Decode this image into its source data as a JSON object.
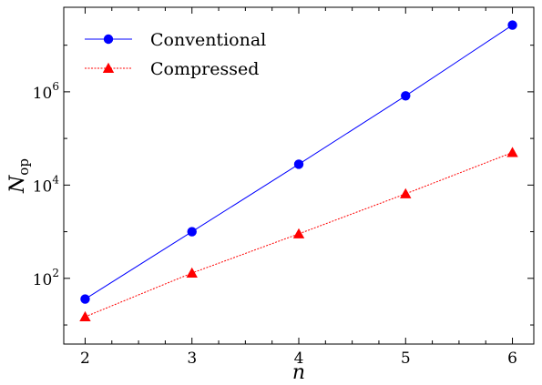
{
  "chart_data": {
    "type": "line",
    "xlabel": "n",
    "ylabel": "N",
    "ylabel_subscript": "op",
    "x": [
      2,
      3,
      4,
      5,
      6
    ],
    "xlim": [
      1.8,
      6.2
    ],
    "xticks": [
      2,
      3,
      4,
      5,
      6
    ],
    "ylim": [
      3.9,
      65000000
    ],
    "yscale": "log",
    "yticks": [
      {
        "value": 100,
        "base": "10",
        "exp": "2"
      },
      {
        "value": 10000,
        "base": "10",
        "exp": "4"
      },
      {
        "value": 1000000,
        "base": "10",
        "exp": "6"
      }
    ],
    "grid": false,
    "legend_position": "top-left",
    "series": [
      {
        "name": "Conventional",
        "color": "#0000ff",
        "marker": "circle",
        "linestyle": "solid",
        "values": [
          36,
          1000,
          28000,
          820000,
          27000000
        ]
      },
      {
        "name": "Compressed",
        "color": "#ff0000",
        "marker": "triangle",
        "linestyle": "dotted",
        "values": [
          15,
          130,
          900,
          6500,
          50000
        ]
      }
    ]
  }
}
